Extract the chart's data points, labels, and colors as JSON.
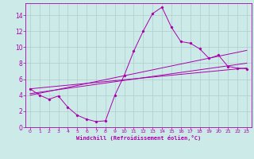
{
  "background_color": "#cceae8",
  "grid_color": "#b0cccc",
  "line_color": "#aa00aa",
  "xlim": [
    -0.5,
    23.5
  ],
  "ylim": [
    0,
    15.5
  ],
  "xticks": [
    0,
    1,
    2,
    3,
    4,
    5,
    6,
    7,
    8,
    9,
    10,
    11,
    12,
    13,
    14,
    15,
    16,
    17,
    18,
    19,
    20,
    21,
    22,
    23
  ],
  "yticks": [
    0,
    2,
    4,
    6,
    8,
    10,
    12,
    14
  ],
  "xlabel": "Windchill (Refroidissement éolien,°C)",
  "line1_x": [
    0,
    1,
    2,
    3,
    4,
    5,
    6,
    7,
    8,
    9,
    10,
    11,
    12,
    13,
    14,
    15,
    16,
    17,
    18,
    19,
    20,
    21,
    22,
    23
  ],
  "line1_y": [
    4.8,
    4.0,
    3.5,
    3.9,
    2.5,
    1.5,
    1.0,
    0.7,
    0.8,
    4.0,
    6.5,
    9.5,
    12.0,
    14.2,
    15.0,
    12.5,
    10.7,
    10.5,
    9.8,
    8.6,
    9.0,
    7.6,
    7.4,
    7.3
  ],
  "trend1_x": [
    0,
    23
  ],
  "trend1_y": [
    4.8,
    7.4
  ],
  "trend2_x": [
    0,
    23
  ],
  "trend2_y": [
    4.2,
    8.0
  ],
  "trend3_x": [
    0,
    23
  ],
  "trend3_y": [
    4.0,
    9.6
  ]
}
